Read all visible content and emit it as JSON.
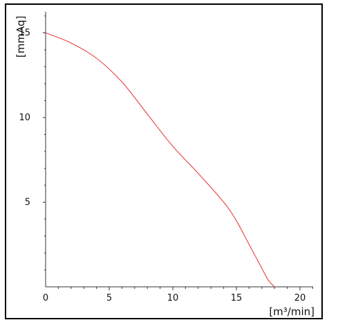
{
  "chart_data": {
    "type": "line",
    "title": "",
    "xlabel": "[m³/min]",
    "ylabel": "[mmAq]",
    "xlim": [
      0,
      21
    ],
    "ylim": [
      0,
      16
    ],
    "x_ticks": [
      "0",
      "5",
      "10",
      "15",
      "20"
    ],
    "y_ticks": [
      "5",
      "10",
      "15"
    ],
    "grid": false,
    "colors": {
      "series": "#e8413a",
      "axis": "#333333"
    },
    "series": [
      {
        "x": [
          0,
          2,
          4,
          6,
          8,
          10,
          12,
          14,
          15,
          16,
          17,
          17.5,
          18
        ],
        "y": [
          15.0,
          14.4,
          13.5,
          12.1,
          10.2,
          8.3,
          6.7,
          5.0,
          3.9,
          2.5,
          1.1,
          0.4,
          0.0
        ]
      }
    ]
  }
}
